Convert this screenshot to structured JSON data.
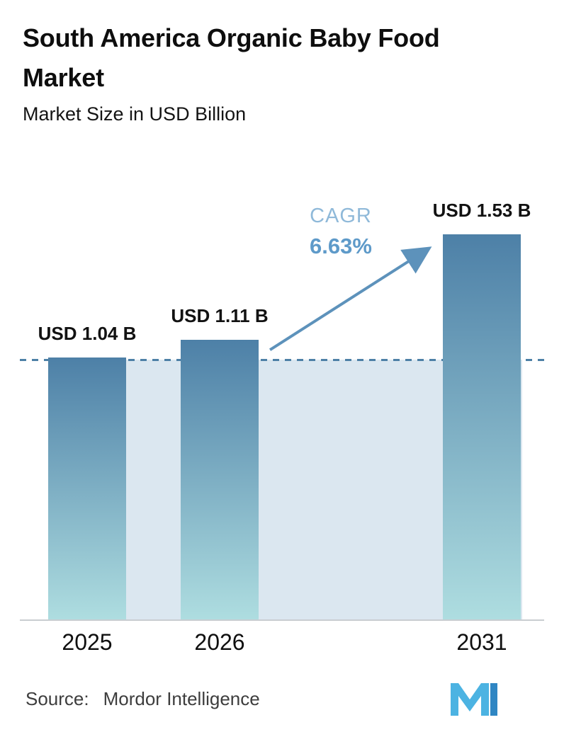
{
  "header": {
    "title": "South America Organic Baby Food Market",
    "subtitle": "Market Size in USD Billion"
  },
  "chart_data": {
    "type": "bar",
    "title": "South America Organic Baby Food Market",
    "subtitle": "Market Size in USD Billion",
    "unit": "USD Billion",
    "categories": [
      "2025",
      "2026",
      "2031"
    ],
    "values": [
      1.04,
      1.11,
      1.53
    ],
    "value_labels": [
      "USD 1.04 B",
      "USD 1.11 B",
      "USD 1.53 B"
    ],
    "ylim": [
      0,
      1.8
    ],
    "grid": false,
    "legend": "none",
    "annotation": {
      "label": "CAGR",
      "value": "6.63%"
    },
    "reference_line": {
      "value": 1.04,
      "style": "dashed"
    },
    "colors": {
      "bar_top": "#4d80a7",
      "bar_bottom": "#aedde0",
      "shade": "#dbe7f0",
      "dashed_line": "#4d80a6",
      "arrow": "#5d92bb",
      "cagr_label": "#8fb9d9",
      "cagr_value": "#5e9ac9",
      "axis_line": "#c9cdd1"
    }
  },
  "footer": {
    "source_label": "Source:",
    "source_value": "Mordor Intelligence",
    "logo": "mordor-intelligence-logo",
    "logo_colors": {
      "primary": "#4cb3e2",
      "secondary": "#2f86c3"
    }
  }
}
